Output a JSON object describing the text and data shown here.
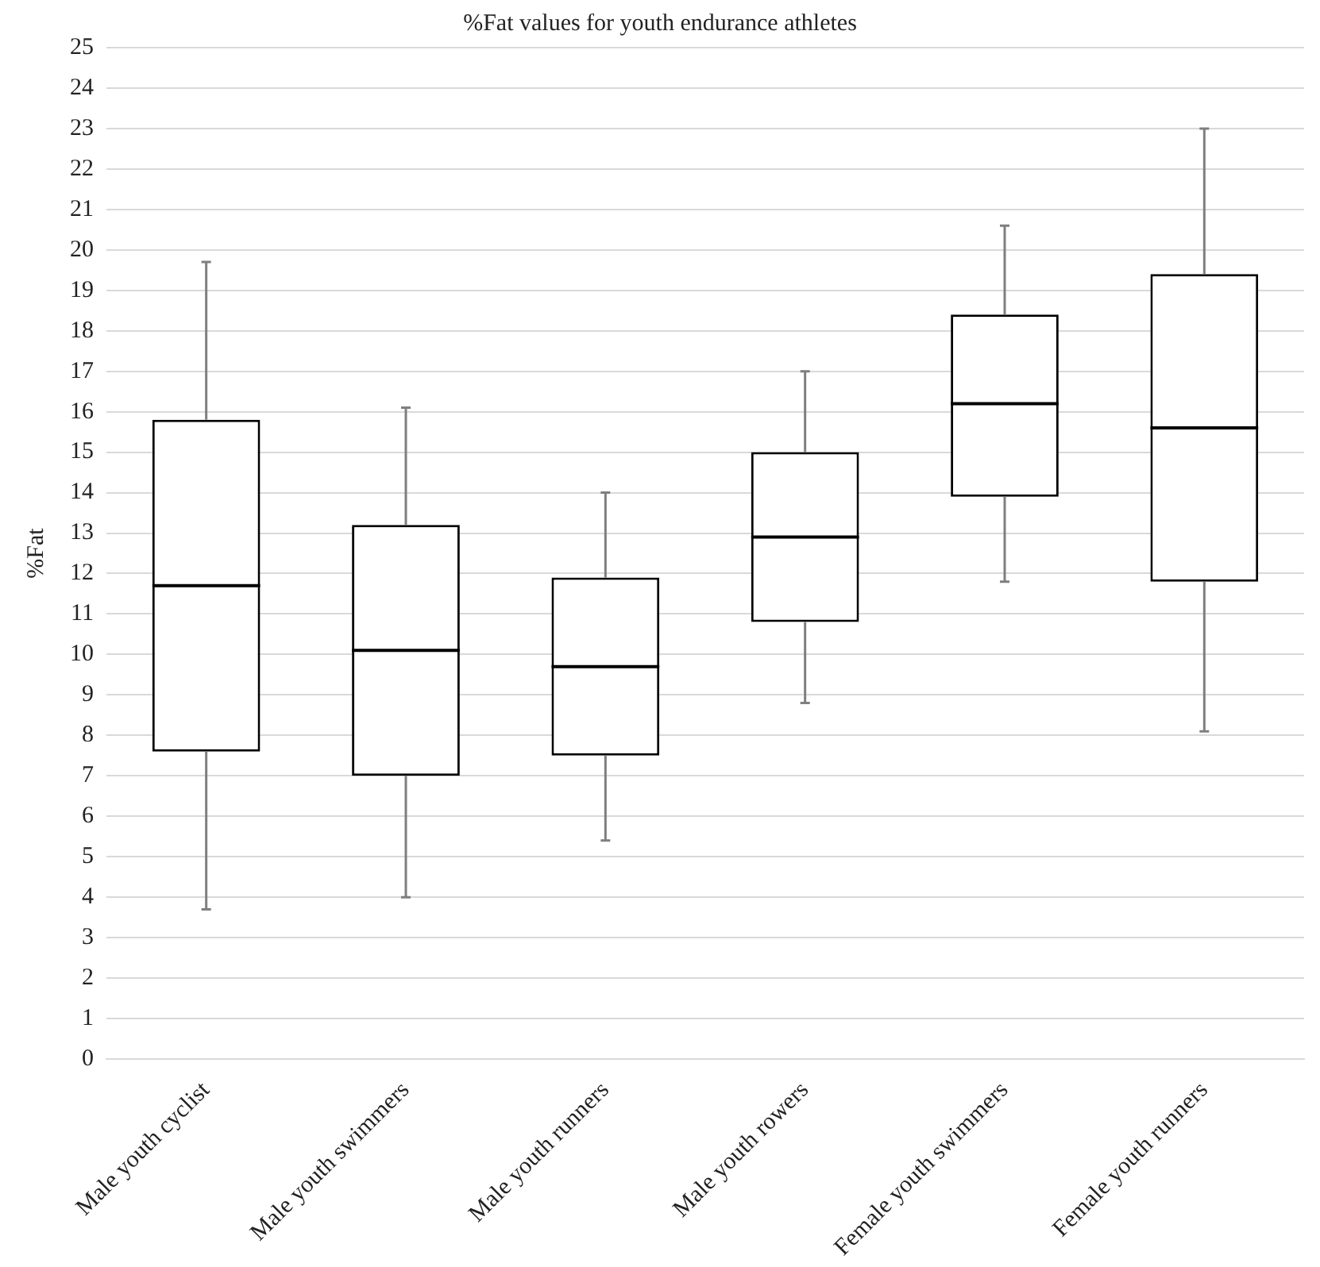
{
  "chart_data": {
    "type": "box",
    "title": "%Fat values for youth endurance athletes",
    "ylabel": "%Fat",
    "categories": [
      "Male youth cyclist",
      "Male youth swimmers",
      "Male youth runners",
      "Male youth rowers",
      "Female youth swimmers",
      "Female youth runners"
    ],
    "boxes": [
      {
        "low": 3.7,
        "q1": 7.6,
        "median": 11.7,
        "q3": 15.8,
        "high": 19.7
      },
      {
        "low": 4.0,
        "q1": 7.0,
        "median": 10.1,
        "q3": 13.2,
        "high": 16.1
      },
      {
        "low": 5.4,
        "q1": 7.5,
        "median": 9.7,
        "q3": 11.9,
        "high": 14.0
      },
      {
        "low": 8.8,
        "q1": 10.8,
        "median": 12.9,
        "q3": 15.0,
        "high": 17.0
      },
      {
        "low": 11.8,
        "q1": 13.9,
        "median": 16.2,
        "q3": 18.4,
        "high": 20.6
      },
      {
        "low": 8.1,
        "q1": 11.8,
        "median": 15.6,
        "q3": 19.4,
        "high": 23.0
      }
    ],
    "color": "#000000",
    "ylim": [
      0,
      25
    ],
    "yticks": [
      0,
      1,
      2,
      3,
      4,
      5,
      6,
      7,
      8,
      9,
      10,
      11,
      12,
      13,
      14,
      15,
      16,
      17,
      18,
      19,
      20,
      21,
      22,
      23,
      24,
      25
    ],
    "grid": "y",
    "legend": false
  }
}
